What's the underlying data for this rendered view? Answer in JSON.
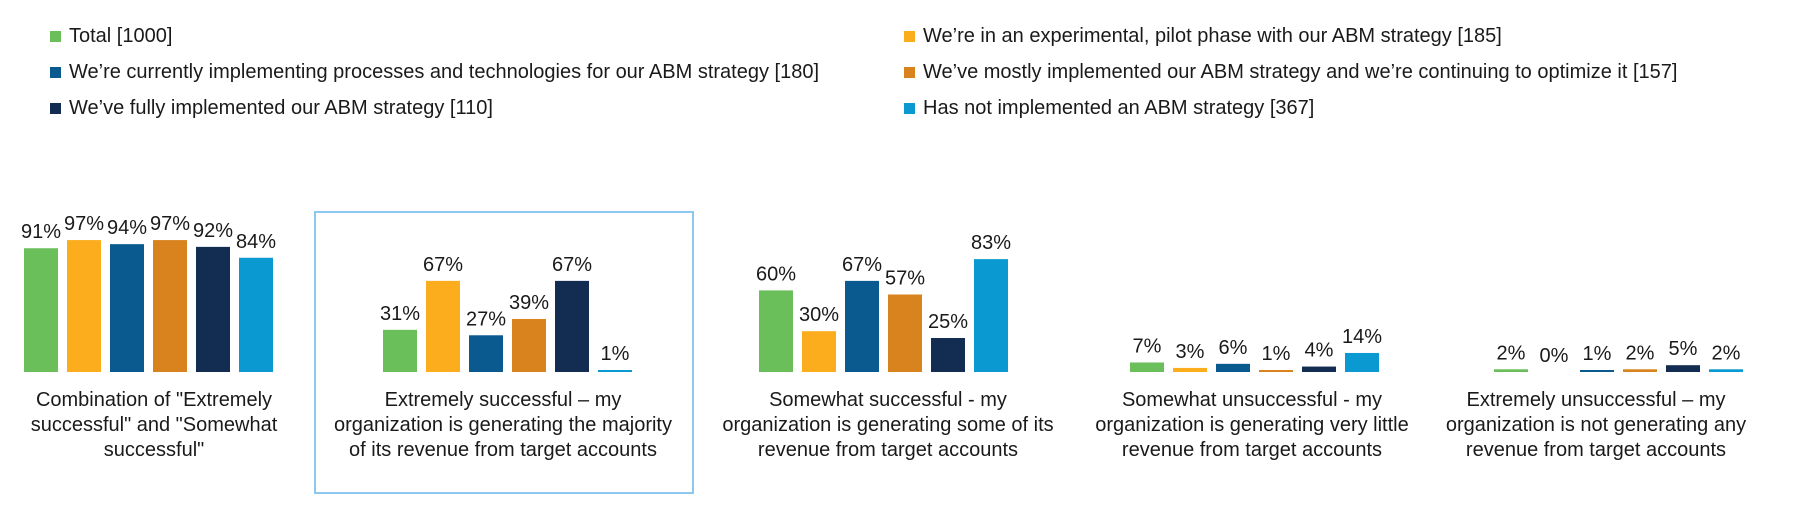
{
  "chart_data": {
    "type": "bar",
    "categories": [
      "Combination of \"Extremely successful\" and \"Somewhat successful\"",
      "Extremely successful – my organization is generating the majority of its revenue from target accounts",
      "Somewhat successful - my organization is generating some of its revenue from target accounts",
      "Somewhat unsuccessful - my organization is generating very little revenue from target accounts",
      "Extremely unsuccessful – my organization is not generating any revenue from target accounts"
    ],
    "category_lines": [
      [
        "Combination of \"Extremely",
        "successful\" and \"Somewhat",
        "successful\""
      ],
      [
        "Extremely successful – my",
        "organization is generating the majority",
        "of its revenue from target accounts"
      ],
      [
        "Somewhat successful - my",
        "organization is generating some of its",
        "revenue from target accounts"
      ],
      [
        "Somewhat unsuccessful - my",
        "organization is generating very little",
        "revenue from target accounts"
      ],
      [
        "Extremely unsuccessful – my",
        "organization is not generating any",
        "revenue from target accounts"
      ]
    ],
    "series": [
      {
        "name": "Total [1000]",
        "color": "#6abf5a",
        "values": [
          91,
          31,
          60,
          7,
          2
        ]
      },
      {
        "name": "We’re in an experimental, pilot phase with our ABM strategy [185]",
        "color": "#fbad1d",
        "values": [
          97,
          67,
          30,
          3,
          0
        ]
      },
      {
        "name": "We’re currently implementing processes and technologies for our ABM strategy [180]",
        "color": "#0a5a8f",
        "values": [
          94,
          27,
          67,
          6,
          1
        ]
      },
      {
        "name": "We’ve mostly implemented our ABM strategy and we’re continuing to optimize it [157]",
        "color": "#d9831f",
        "values": [
          97,
          39,
          57,
          1,
          2
        ]
      },
      {
        "name": "We’ve fully implemented our ABM strategy [110]",
        "color": "#132d52",
        "values": [
          92,
          67,
          25,
          4,
          5
        ]
      },
      {
        "name": "Has not implemented an ABM strategy [367]",
        "color": "#0a9ad1",
        "values": [
          84,
          1,
          83,
          14,
          2
        ]
      }
    ],
    "value_suffix": "%",
    "ylim": [
      0,
      100
    ],
    "highlighted_category": 1,
    "highlight_color": "#8cc8ef",
    "legend_position": "top",
    "grid": false
  }
}
